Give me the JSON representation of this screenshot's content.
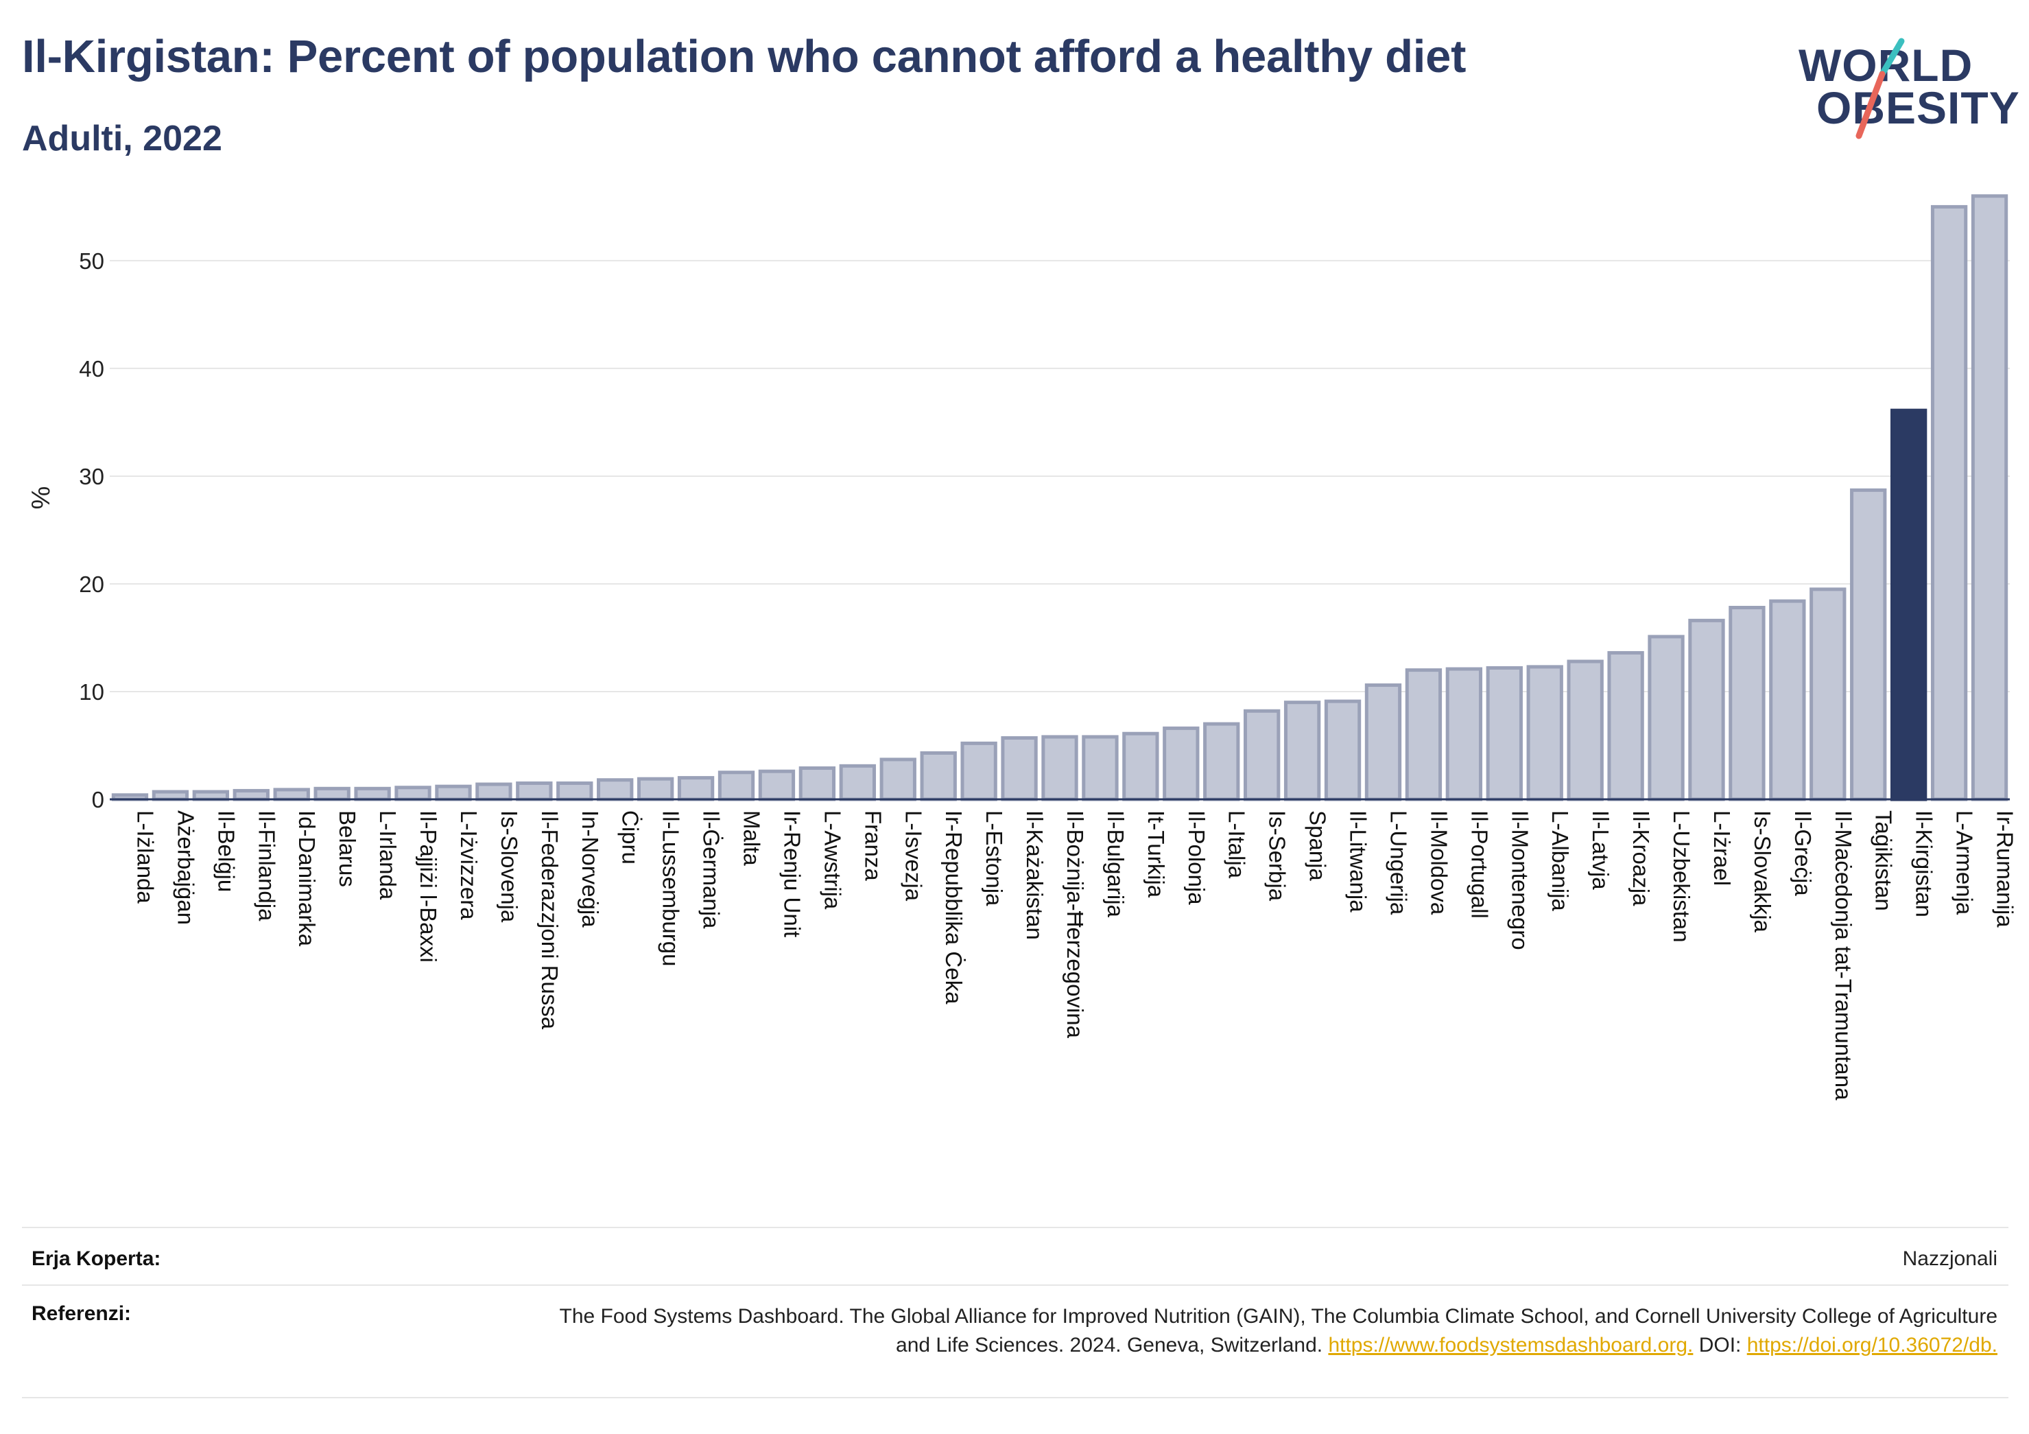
{
  "header": {
    "title": "Il-Kirgistan: Percent of population who cannot afford a healthy diet",
    "subtitle": "Adulti, 2022"
  },
  "logo": {
    "line1": "WORLD",
    "line2": "OBESITY",
    "accent_colors": [
      "#3bbfbf",
      "#e8665a"
    ]
  },
  "colors": {
    "bar": "#c2c7d6",
    "bar_border": "#9aa1b8",
    "highlight": "#2b3a63",
    "grid": "#e6e6e6",
    "text": "#2b3a63"
  },
  "chart_data": {
    "type": "bar",
    "ylabel": "%",
    "ylim": [
      0,
      57
    ],
    "yticks": [
      0,
      10,
      20,
      30,
      40,
      50
    ],
    "grid": true,
    "highlight": "Il-Kirgistan",
    "categories": [
      "L-Iżlanda",
      "Ażerbajġan",
      "Il-Belġju",
      "Il-Finlandja",
      "Id-Danimarka",
      "Belarus",
      "L-Irlanda",
      "Il-Pajjiżi l-Baxxi",
      "L-Iżvizzera",
      "Is-Slovenja",
      "Il-Federazzjoni Russa",
      "In-Norveġja",
      "Ċipru",
      "Il-Lussemburgu",
      "Il-Ġermanja",
      "Malta",
      "Ir-Renju Unit",
      "L-Awstrija",
      "Franza",
      "L-Isvezja",
      "Ir-Repubblika Ċeka",
      "L-Estonja",
      "Il-Każakistan",
      "Il-Bożnija-Ħerzegovina",
      "Il-Bulgarija",
      "It-Turkija",
      "Il-Polonja",
      "L-Italja",
      "Is-Serbja",
      "Spanja",
      "Il-Litwanja",
      "L-Ungerija",
      "Il-Moldova",
      "Il-Portugall",
      "Il-Montenegro",
      "L-Albanija",
      "Il-Latvja",
      "Il-Kroazja",
      "L-Uzbekistan",
      "L-Iżrael",
      "Is-Slovakkja",
      "Il-Greċja",
      "Il-Maċedonja tat-Tramuntana",
      "Taġikistan",
      "Il-Kirgistan",
      "L-Armenja",
      "Ir-Rumanija"
    ],
    "values": [
      0.4,
      0.7,
      0.7,
      0.8,
      0.9,
      1.0,
      1.0,
      1.1,
      1.2,
      1.4,
      1.5,
      1.5,
      1.8,
      1.9,
      2.0,
      2.5,
      2.6,
      2.9,
      3.1,
      3.7,
      4.3,
      5.2,
      5.7,
      5.8,
      5.8,
      6.1,
      6.6,
      7.0,
      8.2,
      9.0,
      9.1,
      10.6,
      12.0,
      12.1,
      12.2,
      12.3,
      12.8,
      13.6,
      15.1,
      16.6,
      17.8,
      18.4,
      19.5,
      28.7,
      36.1,
      55.0,
      56.0
    ]
  },
  "footer": {
    "coverage_label": "Erja Koperta:",
    "coverage_value": "Nazzjonali",
    "refs_label": "Referenzi:",
    "refs_text_1": "The Food Systems Dashboard. The Global Alliance for Improved Nutrition (GAIN), The Columbia Climate School, and Cornell University College of Agriculture and Life Sciences. 2024. Geneva, Switzerland. ",
    "refs_link_1": "https://www.foodsystemsdashboard.org.",
    "refs_text_2": " DOI: ",
    "refs_link_2": "https://doi.org/10.36072/db."
  }
}
